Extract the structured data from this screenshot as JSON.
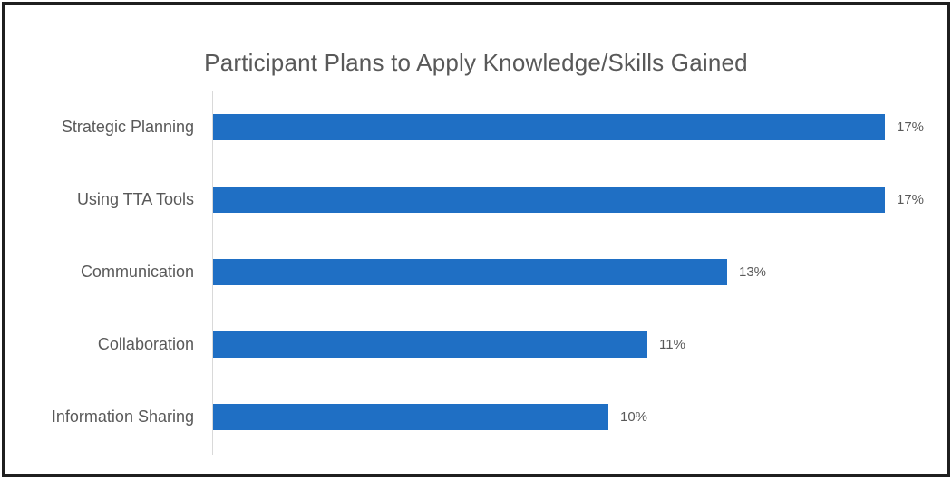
{
  "chart_data": {
    "type": "bar",
    "orientation": "horizontal",
    "title": "Participant Plans to Apply Knowledge/Skills Gained",
    "categories": [
      "Strategic Planning",
      "Using TTA Tools",
      "Communication",
      "Collaboration",
      "Information Sharing"
    ],
    "values": [
      17,
      17,
      13,
      11,
      10
    ],
    "value_labels": [
      "17%",
      "17%",
      "13%",
      "11%",
      "10%"
    ],
    "xlim": [
      0,
      18
    ],
    "grid": false,
    "legend": "none",
    "data_labels_position": "outside-end",
    "bar_color": "#1f6fc4",
    "text_color": "#595959",
    "title_color": "#595959",
    "axis_line_color": "#d9d9d9",
    "frame_border_color": "#1f1f1f",
    "background_color": "#ffffff"
  }
}
